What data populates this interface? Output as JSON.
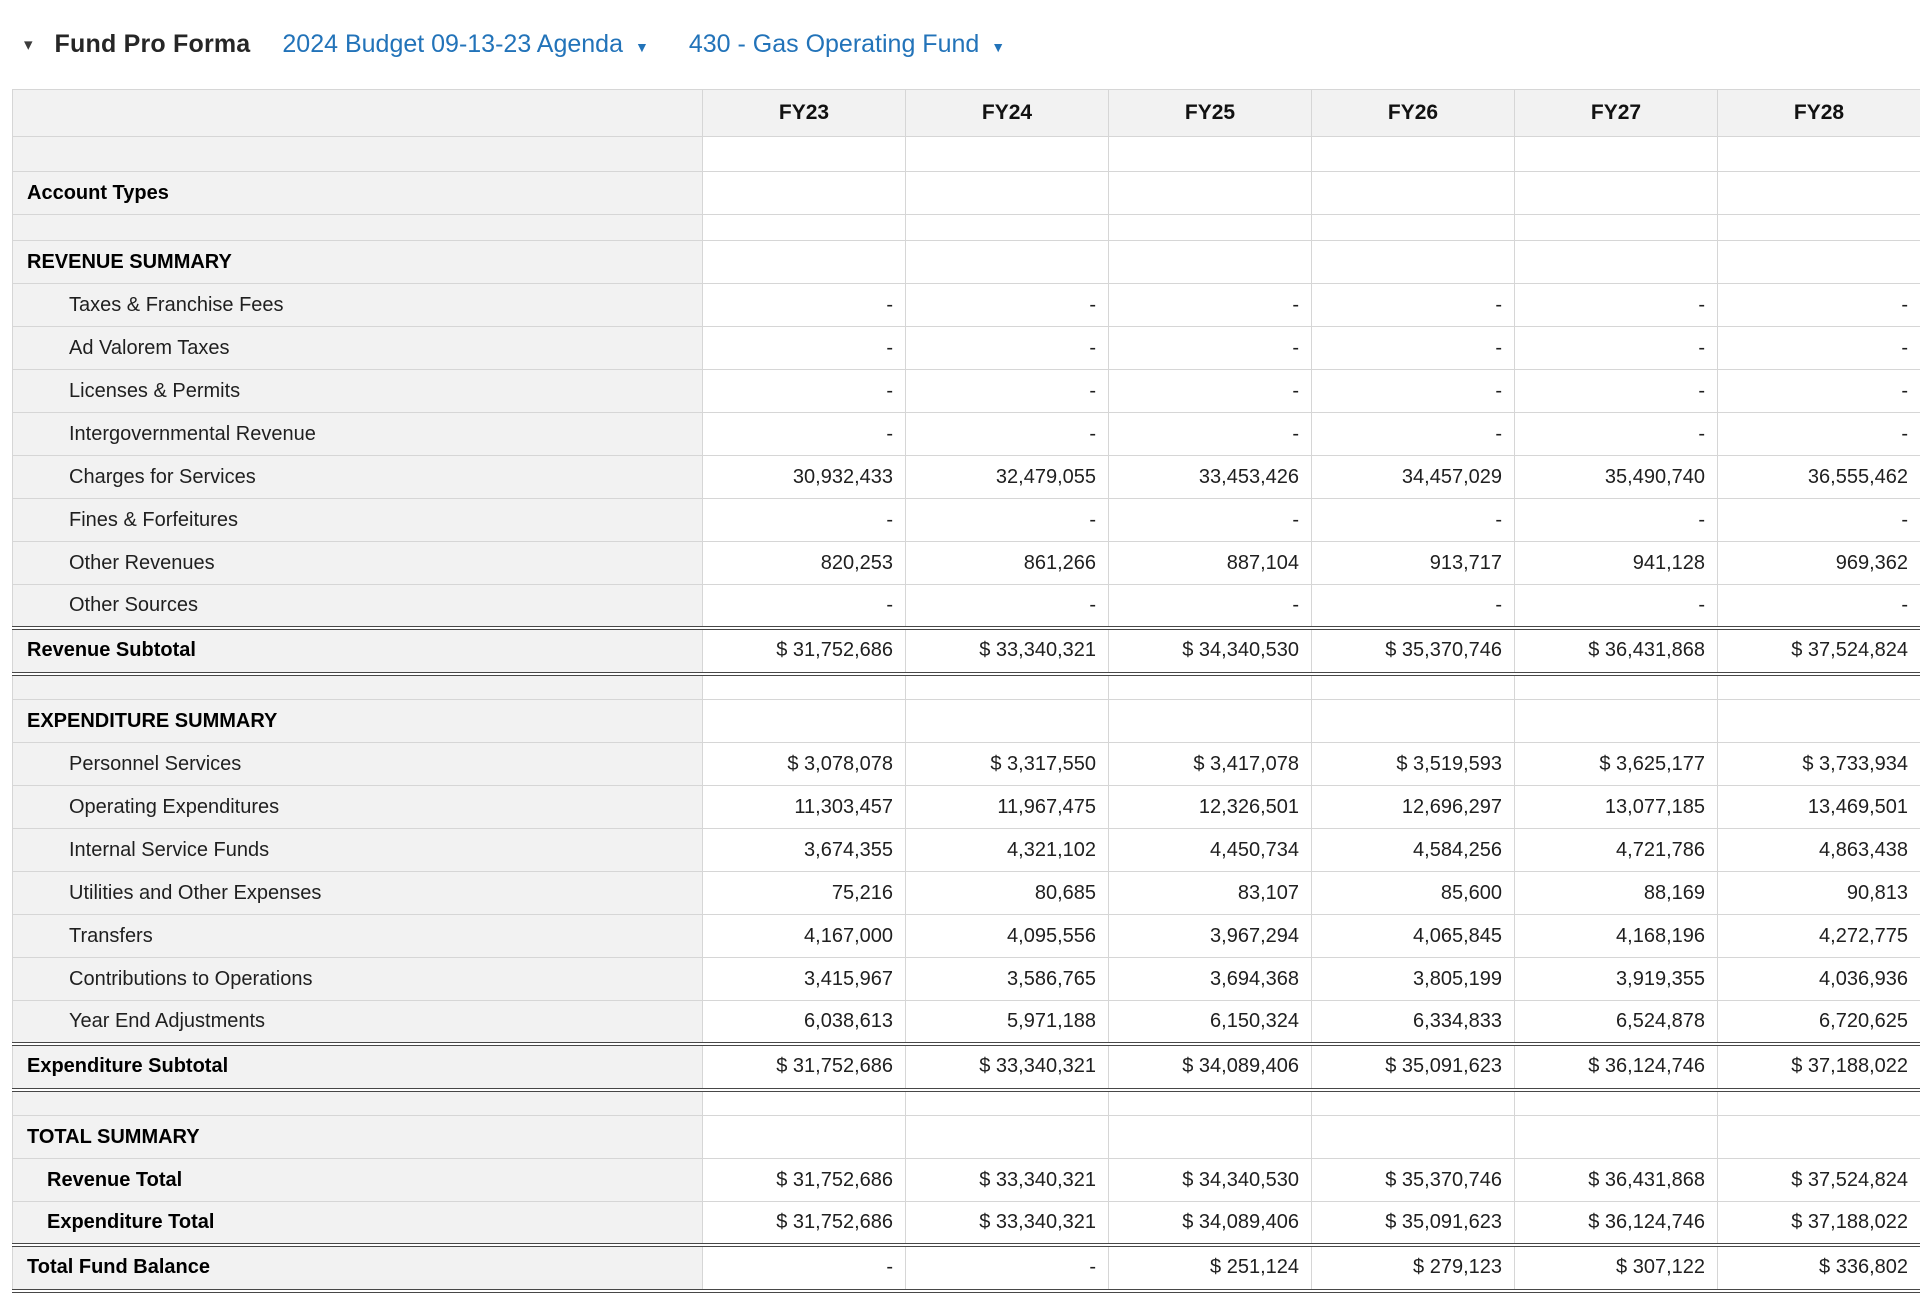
{
  "header": {
    "collapse_icon": "▾",
    "title": "Fund Pro Forma",
    "budget_dropdown": "2024 Budget 09-13-23 Agenda",
    "fund_dropdown": "430 - Gas Operating Fund",
    "dropdown_caret": "▼"
  },
  "colors": {
    "link_blue": "#2273b9",
    "header_bg": "#f2f2f2",
    "border": "#d6d6d6",
    "double_border": "#474747",
    "text": "#1f1f1f"
  },
  "table": {
    "columns": [
      "FY23",
      "FY24",
      "FY25",
      "FY26",
      "FY27",
      "FY28"
    ],
    "rows": [
      {
        "type": "blank"
      },
      {
        "type": "section",
        "label": "Account Types"
      },
      {
        "type": "spacer"
      },
      {
        "type": "section",
        "label": "REVENUE SUMMARY"
      },
      {
        "type": "data",
        "label": "Taxes & Franchise Fees",
        "values": [
          "-",
          "-",
          "-",
          "-",
          "-",
          "-"
        ]
      },
      {
        "type": "data",
        "label": "Ad Valorem Taxes",
        "values": [
          "-",
          "-",
          "-",
          "-",
          "-",
          "-"
        ]
      },
      {
        "type": "data",
        "label": "Licenses & Permits",
        "values": [
          "-",
          "-",
          "-",
          "-",
          "-",
          "-"
        ]
      },
      {
        "type": "data",
        "label": "Intergovernmental Revenue",
        "values": [
          "-",
          "-",
          "-",
          "-",
          "-",
          "-"
        ]
      },
      {
        "type": "data",
        "label": "Charges for Services",
        "values": [
          "30,932,433",
          "32,479,055",
          "33,453,426",
          "34,457,029",
          "35,490,740",
          "36,555,462"
        ]
      },
      {
        "type": "data",
        "label": "Fines & Forfeitures",
        "values": [
          "-",
          "-",
          "-",
          "-",
          "-",
          "-"
        ]
      },
      {
        "type": "data",
        "label": "Other Revenues",
        "values": [
          "820,253",
          "861,266",
          "887,104",
          "913,717",
          "941,128",
          "969,362"
        ]
      },
      {
        "type": "data",
        "label": "Other Sources",
        "values": [
          "-",
          "-",
          "-",
          "-",
          "-",
          "-"
        ]
      },
      {
        "type": "subtotal",
        "label": "Revenue Subtotal",
        "values": [
          "$ 31,752,686",
          "$ 33,340,321",
          "$ 34,340,530",
          "$ 35,370,746",
          "$ 36,431,868",
          "$ 37,524,824"
        ]
      },
      {
        "type": "spacer"
      },
      {
        "type": "section",
        "label": "EXPENDITURE SUMMARY"
      },
      {
        "type": "data",
        "label": "Personnel Services",
        "values": [
          "$ 3,078,078",
          "$ 3,317,550",
          "$ 3,417,078",
          "$ 3,519,593",
          "$ 3,625,177",
          "$ 3,733,934"
        ]
      },
      {
        "type": "data",
        "label": "Operating Expenditures",
        "values": [
          "11,303,457",
          "11,967,475",
          "12,326,501",
          "12,696,297",
          "13,077,185",
          "13,469,501"
        ]
      },
      {
        "type": "data",
        "label": "Internal Service Funds",
        "values": [
          "3,674,355",
          "4,321,102",
          "4,450,734",
          "4,584,256",
          "4,721,786",
          "4,863,438"
        ]
      },
      {
        "type": "data",
        "label": "Utilities and Other Expenses",
        "values": [
          "75,216",
          "80,685",
          "83,107",
          "85,600",
          "88,169",
          "90,813"
        ]
      },
      {
        "type": "data",
        "label": "Transfers",
        "values": [
          "4,167,000",
          "4,095,556",
          "3,967,294",
          "4,065,845",
          "4,168,196",
          "4,272,775"
        ]
      },
      {
        "type": "data",
        "label": "Contributions to Operations",
        "values": [
          "3,415,967",
          "3,586,765",
          "3,694,368",
          "3,805,199",
          "3,919,355",
          "4,036,936"
        ]
      },
      {
        "type": "data",
        "label": "Year End Adjustments",
        "values": [
          "6,038,613",
          "5,971,188",
          "6,150,324",
          "6,334,833",
          "6,524,878",
          "6,720,625"
        ]
      },
      {
        "type": "subtotal",
        "label": "Expenditure Subtotal",
        "values": [
          "$ 31,752,686",
          "$ 33,340,321",
          "$ 34,089,406",
          "$ 35,091,623",
          "$ 36,124,746",
          "$ 37,188,022"
        ]
      },
      {
        "type": "spacer"
      },
      {
        "type": "section",
        "label": "TOTAL SUMMARY"
      },
      {
        "type": "total",
        "label": "Revenue Total",
        "values": [
          "$ 31,752,686",
          "$ 33,340,321",
          "$ 34,340,530",
          "$ 35,370,746",
          "$ 36,431,868",
          "$ 37,524,824"
        ]
      },
      {
        "type": "total",
        "label": "Expenditure Total",
        "values": [
          "$ 31,752,686",
          "$ 33,340,321",
          "$ 34,089,406",
          "$ 35,091,623",
          "$ 36,124,746",
          "$ 37,188,022"
        ]
      },
      {
        "type": "subtotal",
        "label": "Total Fund Balance",
        "values": [
          "-",
          "-",
          "$ 251,124",
          "$ 279,123",
          "$ 307,122",
          "$ 336,802"
        ]
      }
    ]
  }
}
